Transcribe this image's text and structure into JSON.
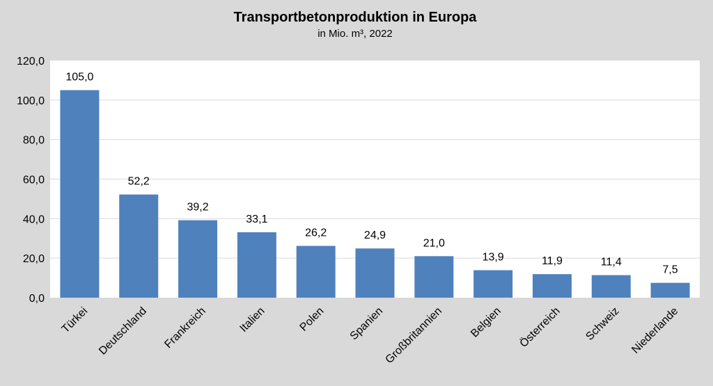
{
  "chart_data": {
    "type": "bar",
    "title": "Transportbetonproduktion in Europa",
    "subtitle": "in Mio. m³, 2022",
    "xlabel": "",
    "ylabel": "",
    "categories": [
      "Türkei",
      "Deutschland",
      "Frankreich",
      "Italien",
      "Polen",
      "Spanien",
      "Großbritannien",
      "Belgien",
      "Österreich",
      "Schweiz",
      "Niederlande"
    ],
    "values": [
      105.0,
      52.2,
      39.2,
      33.1,
      26.2,
      24.9,
      21.0,
      13.9,
      11.9,
      11.4,
      7.5
    ],
    "value_labels": [
      "105,0",
      "52,2",
      "39,2",
      "33,1",
      "26,2",
      "24,9",
      "21,0",
      "13,9",
      "11,9",
      "11,4",
      "7,5"
    ],
    "ylim": [
      0,
      120
    ],
    "yticks": [
      0,
      20,
      40,
      60,
      80,
      100,
      120
    ],
    "ytick_labels": [
      "0,0",
      "20,0",
      "40,0",
      "60,0",
      "80,0",
      "100,0",
      "120,0"
    ],
    "grid": true,
    "legend": "none",
    "colors": {
      "bar": "#4f81bd",
      "page_background": "#d9d9d9",
      "plot_background": "#ffffff",
      "gridline": "#d9d9d9"
    }
  }
}
